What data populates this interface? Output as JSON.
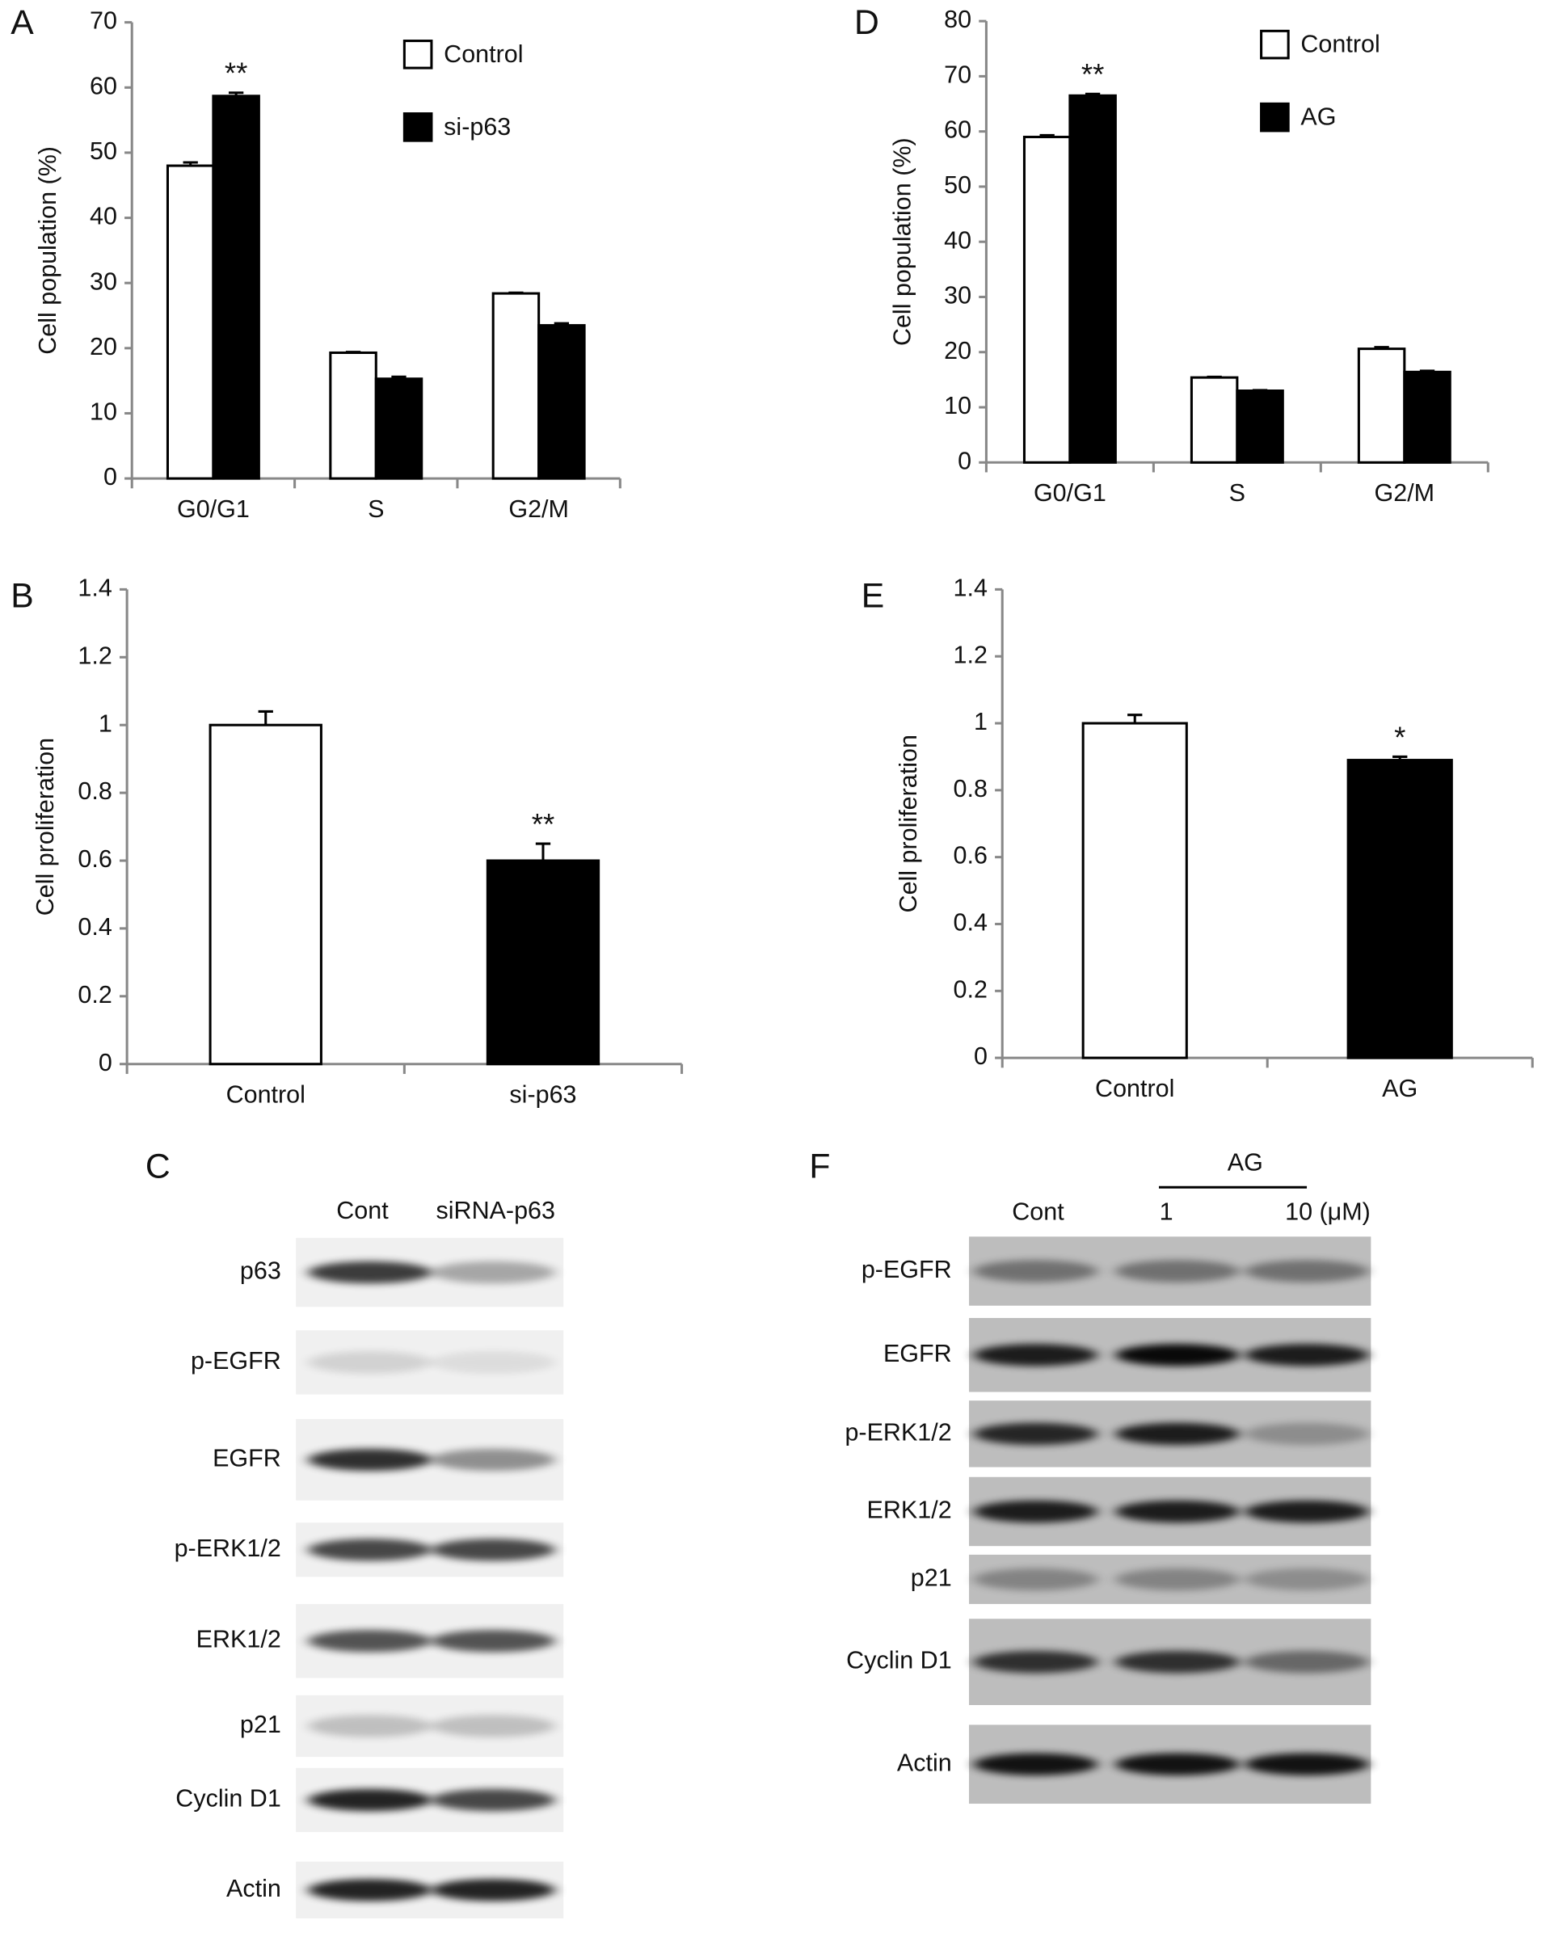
{
  "chart_data": [
    {
      "type": "grouped_bar",
      "panel_label": "A",
      "y_label": "Cell population (%)",
      "categories": [
        "G0/G1",
        "S",
        "G2/M"
      ],
      "series": [
        {
          "name": "Control",
          "color": "#ffffff",
          "values": [
            48,
            19.3,
            28.4
          ],
          "errors": [
            0.5,
            0.1,
            0.1
          ]
        },
        {
          "name": "si-p63",
          "color": "#000000",
          "values": [
            58.7,
            15.3,
            23.5
          ],
          "errors": [
            0.5,
            0.3,
            0.3
          ]
        }
      ],
      "annotations": [
        {
          "text": "**",
          "series": 1,
          "category": 0
        }
      ],
      "ylim": [
        0,
        70
      ],
      "yticks": [
        0,
        10,
        20,
        30,
        40,
        50,
        60,
        70
      ]
    },
    {
      "type": "bar",
      "panel_label": "B",
      "y_label": "Cell proliferation",
      "categories": [
        "Control",
        "si-p63"
      ],
      "values": [
        1.0,
        0.6
      ],
      "errors": [
        0.04,
        0.05
      ],
      "colors": [
        "#ffffff",
        "#000000"
      ],
      "annotations": [
        {
          "text": "**",
          "category": 1
        }
      ],
      "ylim": [
        0,
        1.4
      ],
      "yticks": [
        0,
        0.2,
        0.4,
        0.6,
        0.8,
        1,
        1.2,
        1.4
      ]
    },
    {
      "type": "grouped_bar",
      "panel_label": "D",
      "y_label": "Cell population (%)",
      "categories": [
        "G0/G1",
        "S",
        "G2/M"
      ],
      "series": [
        {
          "name": "Control",
          "color": "#ffffff",
          "values": [
            59,
            15.4,
            20.6
          ],
          "errors": [
            0.3,
            0.1,
            0.3
          ]
        },
        {
          "name": "AG",
          "color": "#000000",
          "values": [
            66.5,
            13,
            16.4
          ],
          "errors": [
            0.3,
            0.1,
            0.2
          ]
        }
      ],
      "annotations": [
        {
          "text": "**",
          "series": 1,
          "category": 0
        }
      ],
      "ylim": [
        0,
        80
      ],
      "yticks": [
        0,
        10,
        20,
        30,
        40,
        50,
        60,
        70,
        80
      ]
    },
    {
      "type": "bar",
      "panel_label": "E",
      "y_label": "Cell proliferation",
      "categories": [
        "Control",
        "AG"
      ],
      "values": [
        1.0,
        0.89
      ],
      "errors": [
        0.025,
        0.01
      ],
      "colors": [
        "#ffffff",
        "#000000"
      ],
      "annotations": [
        {
          "text": "*",
          "category": 1
        }
      ],
      "ylim": [
        0,
        1.4
      ],
      "yticks": [
        0,
        0.2,
        0.4,
        0.6,
        0.8,
        1,
        1.2,
        1.4
      ]
    }
  ],
  "blots": [
    {
      "panel_label": "C",
      "columns": [
        "Cont",
        "siRNA-p63"
      ],
      "rows": [
        "p63",
        "p-EGFR",
        "EGFR",
        "p-ERK1/2",
        "ERK1/2",
        "p21",
        "Cyclin D1",
        "Actin"
      ]
    },
    {
      "panel_label": "F",
      "group_label": "AG",
      "columns": [
        "Cont",
        "1",
        "10 (μM)"
      ],
      "rows": [
        "p-EGFR",
        "EGFR",
        "p-ERK1/2",
        "ERK1/2",
        "p21",
        "Cyclin D1",
        "Actin"
      ]
    }
  ]
}
